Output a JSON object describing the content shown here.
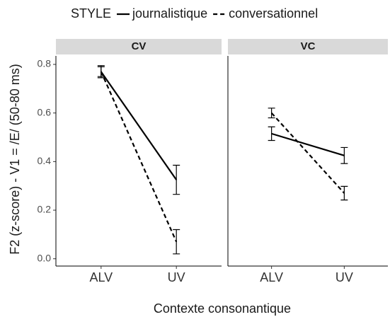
{
  "chart_data": {
    "type": "line",
    "legend_title": "STYLE",
    "ylabel": "F2 (z-score) - V1 = /E/ (50-80 ms)",
    "xlabel": "Contexte consonantique",
    "categories": [
      "ALV",
      "UV"
    ],
    "ylim": [
      -0.03,
      0.835
    ],
    "yticks": [
      {
        "value": 0,
        "label": "0.0"
      },
      {
        "value": 0.2,
        "label": "0.2"
      },
      {
        "value": 0.4,
        "label": "0.4"
      },
      {
        "value": 0.6,
        "label": "0.6"
      },
      {
        "value": 0.8,
        "label": "0.8"
      }
    ],
    "legend_names": [
      "journalistique",
      "conversationnel"
    ],
    "linetypes": [
      "solid",
      "dashed"
    ],
    "color": "#000000",
    "panels": [
      {
        "title": "CV",
        "series": [
          {
            "values": [
              0.77,
              0.325
            ],
            "errors": [
              0.025,
              0.06
            ]
          },
          {
            "values": [
              0.77,
              0.07
            ],
            "errors": [
              0.02,
              0.05
            ]
          }
        ]
      },
      {
        "title": "VC",
        "series": [
          {
            "values": [
              0.515,
              0.425
            ],
            "errors": [
              0.028,
              0.033
            ]
          },
          {
            "values": [
              0.6,
              0.27
            ],
            "errors": [
              0.02,
              0.028
            ]
          }
        ]
      }
    ]
  }
}
